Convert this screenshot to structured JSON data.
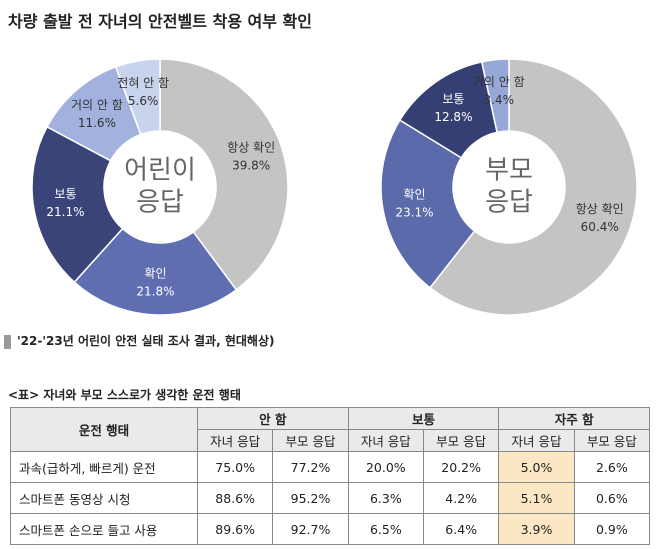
{
  "title": "차량 출발 전 자녀의 안전벨트 착용 여부 확인",
  "chart_data": [
    {
      "type": "donut",
      "center_label": [
        "어린이",
        "응답"
      ],
      "categories": [
        "항상 확인",
        "확인",
        "보통",
        "거의 안 함",
        "전혀 안 함"
      ],
      "values": [
        39.8,
        21.8,
        21.1,
        11.6,
        5.6
      ],
      "value_labels": [
        "39.8%",
        "21.8%",
        "21.1%",
        "11.6%",
        "5.6%"
      ],
      "colors": [
        "#c4c4c4",
        "#5f6eb0",
        "#3a4479",
        "#a2b1dd",
        "#c8d3ee"
      ]
    },
    {
      "type": "donut",
      "center_label": [
        "부모",
        "응답"
      ],
      "categories": [
        "항상 확인",
        "확인",
        "보통",
        "거의 안 함"
      ],
      "values": [
        60.4,
        23.1,
        12.8,
        3.4
      ],
      "value_labels": [
        "60.4%",
        "23.1%",
        "12.8%",
        "3.4%"
      ],
      "colors": [
        "#c4c4c4",
        "#5b6aaa",
        "#353f73",
        "#97a8d8"
      ]
    }
  ],
  "source": "'22-'23년 어린이 안전 실태 조사 결과, 현대해상)",
  "table": {
    "caption": "<표> 자녀와 부모 스스로가 생각한 운전 행태",
    "header": {
      "group_label": "운전 행태",
      "groups": [
        "안 함",
        "보통",
        "자주 함"
      ],
      "sub": [
        "자녀 응답",
        "부모 응답",
        "자녀 응답",
        "부모 응답",
        "자녀 응답",
        "부모 응답"
      ]
    },
    "rows": [
      {
        "label": "과속(급하게, 빠르게) 운전",
        "values": [
          "75.0%",
          "77.2%",
          "20.0%",
          "20.2%",
          "5.0%",
          "2.6%"
        ]
      },
      {
        "label": "스마트폰 동영상 시청",
        "values": [
          "88.6%",
          "95.2%",
          "6.3%",
          "4.2%",
          "5.1%",
          "0.6%"
        ]
      },
      {
        "label": "스마트폰 손으로 들고 사용",
        "values": [
          "89.6%",
          "92.7%",
          "6.5%",
          "6.4%",
          "3.9%",
          "0.9%"
        ]
      }
    ]
  }
}
